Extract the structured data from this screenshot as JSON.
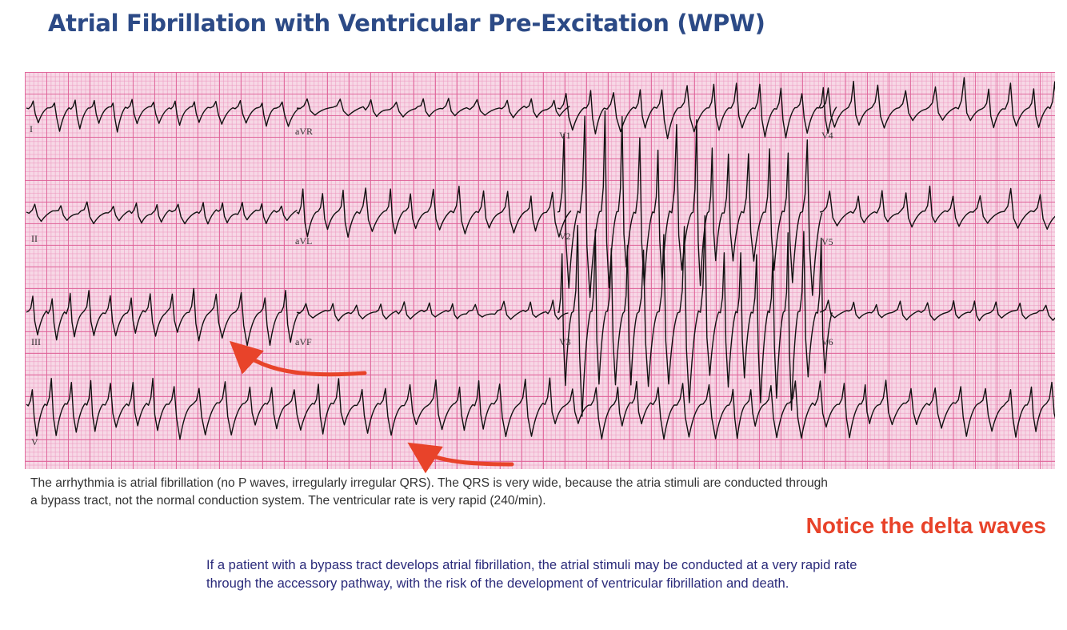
{
  "slide": {
    "title": "Atrial Fibrillation with Ventricular Pre-Excitation (WPW)",
    "caption_line1": "The arrhythmia is atrial fibrillation (no P waves, irregularly irregular QRS).   The QRS is very wide, because the atria stimuli are conducted through",
    "caption_line2": "a bypass tract, not the normal conduction system. The ventricular rate is very rapid (240/min).",
    "callout": "Notice the delta waves",
    "note": "If a patient with a bypass tract develops atrial fibrillation, the atrial stimuli may be conducted at a very rapid rate through the accessory pathway, with the risk of the development of ventricular fibrillation and death."
  },
  "ecg": {
    "leads": {
      "I": "I",
      "II": "II",
      "III": "III",
      "aVR": "aVR",
      "aVL": "aVL",
      "aVF": "aVF",
      "V1": "V1",
      "V2": "V2",
      "V3": "V3",
      "V4": "V4",
      "V5": "V5",
      "V6": "V6",
      "rhythm": "V"
    }
  },
  "colors": {
    "title": "#2c4a86",
    "grid_background": "#f7d8e6",
    "grid_major": "#de5f96",
    "trace": "#111111",
    "arrow": "#e8432a",
    "note_text": "#2a2a7a"
  }
}
